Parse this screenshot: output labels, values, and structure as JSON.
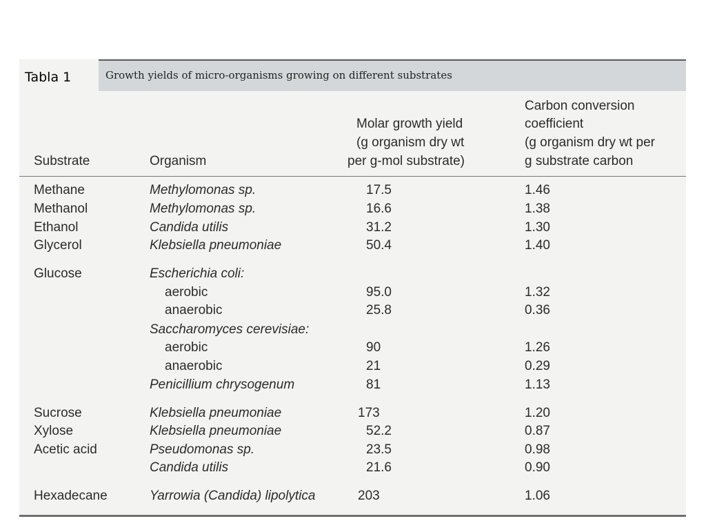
{
  "slide_label": "Tabla 1",
  "table": {
    "title": "Growth yields of micro-organisms growing on different substrates",
    "headers": {
      "substrate": "Substrate",
      "organism": "Organism",
      "molar": [
        "Molar growth yield",
        "(g organism dry wt",
        "per g-mol substrate)"
      ],
      "carbon": [
        "Carbon conversion",
        "coefficient",
        "(g organism dry wt per",
        "g substrate carbon"
      ]
    },
    "rows": [
      {
        "substrate": "Methane",
        "organism": "Methylomonas sp.",
        "organism_style": "italic",
        "molar": "17.5",
        "carbon": "1.46"
      },
      {
        "substrate": "Methanol",
        "organism": "Methylomonas sp.",
        "organism_style": "italic",
        "molar": "16.6",
        "carbon": "1.38"
      },
      {
        "substrate": "Ethanol",
        "organism": "Candida utilis",
        "organism_style": "italic",
        "molar": "31.2",
        "carbon": "1.30"
      },
      {
        "substrate": "Glycerol",
        "organism": "Klebsiella pneumoniae",
        "organism_style": "italic",
        "molar": "50.4",
        "carbon": "1.40"
      },
      {
        "substrate": "Glucose",
        "organism": "Escherichia coli:",
        "organism_style": "italic",
        "molar": "",
        "carbon": ""
      },
      {
        "substrate": "",
        "organism": "aerobic",
        "organism_style": "indent",
        "molar": "95.0",
        "carbon": "1.32"
      },
      {
        "substrate": "",
        "organism": "anaerobic",
        "organism_style": "indent",
        "molar": "25.8",
        "carbon": "0.36"
      },
      {
        "substrate": "",
        "organism": "Saccharomyces cerevisiae:",
        "organism_style": "italic",
        "molar": "",
        "carbon": ""
      },
      {
        "substrate": "",
        "organism": "aerobic",
        "organism_style": "indent",
        "molar": "90",
        "carbon": "1.26"
      },
      {
        "substrate": "",
        "organism": "anaerobic",
        "organism_style": "indent",
        "molar": "21",
        "carbon": "0.29"
      },
      {
        "substrate": "",
        "organism": "Penicillium chrysogenum",
        "organism_style": "italic",
        "molar": "81",
        "carbon": "1.13"
      },
      {
        "substrate": "Sucrose",
        "organism": "Klebsiella pneumoniae",
        "organism_style": "italic",
        "molar": "173",
        "carbon": "1.20"
      },
      {
        "substrate": "Xylose",
        "organism": "Klebsiella pneumoniae",
        "organism_style": "italic",
        "molar": "52.2",
        "carbon": "0.87"
      },
      {
        "substrate": "Acetic acid",
        "organism": "Pseudomonas sp.",
        "organism_style": "italic",
        "molar": "23.5",
        "carbon": "0.98"
      },
      {
        "substrate": "",
        "organism": "Candida utilis",
        "organism_style": "italic",
        "molar": "21.6",
        "carbon": "0.90"
      },
      {
        "substrate": "Hexadecane",
        "organism": "Yarrowia (Candida) lipolytica",
        "organism_style": "italic",
        "molar": "203",
        "carbon": "1.06"
      }
    ]
  }
}
